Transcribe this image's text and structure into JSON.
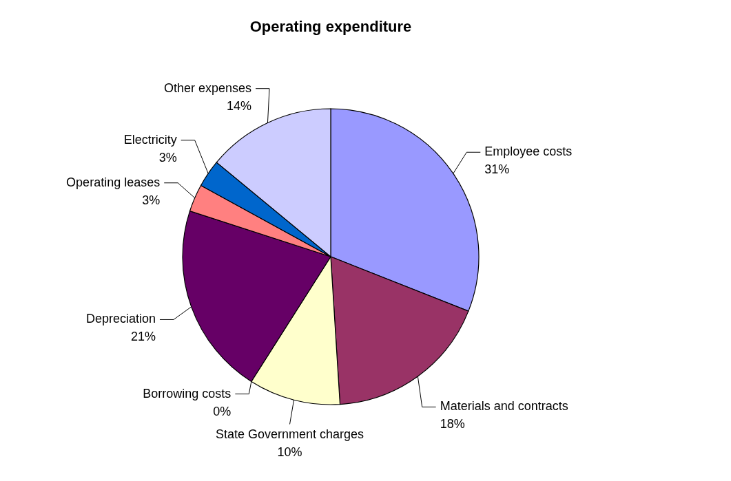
{
  "chart_data": {
    "type": "pie",
    "title": "Operating expenditure",
    "categories": [
      "Employee costs",
      "Materials and contracts",
      "State Government charges",
      "Borrowing costs",
      "Depreciation",
      "Operating leases",
      "Electricity",
      "Other expenses"
    ],
    "values": [
      31,
      18,
      10,
      0,
      21,
      3,
      3,
      14
    ],
    "value_labels": [
      "31%",
      "18%",
      "10%",
      "0%",
      "21%",
      "3%",
      "3%",
      "14%"
    ],
    "colors": [
      "#9999ff",
      "#993366",
      "#ffffcc",
      "#ccffff",
      "#660066",
      "#ff8080",
      "#0066cc",
      "#ccccff"
    ]
  }
}
